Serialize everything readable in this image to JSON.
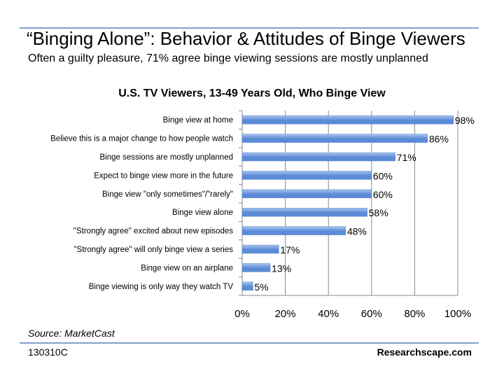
{
  "slide": {
    "title": "“Binging Alone”: Behavior & Attitudes of Binge Viewers",
    "subtitle": "Often a guilty pleasure, 71% agree binge viewing sessions are mostly unplanned",
    "source": "Source: MarketCast",
    "code": "130310C",
    "brand": "Researchscape.com"
  },
  "colors": {
    "bar": "#5b8bd6",
    "bar_light": "#a9c4ee",
    "rule": "#7f9fcf",
    "grid": "#888888"
  },
  "chart_data": {
    "type": "bar",
    "orientation": "horizontal",
    "title": "U.S. TV Viewers, 13-49 Years Old, Who Binge View",
    "categories": [
      "Binge view at home",
      "Believe this is a major change to how people watch",
      "Binge sessions are mostly unplanned",
      "Expect to binge view more in the future",
      "Binge view \"only sometimes\"/\"rarely\"",
      "Binge view alone",
      "\"Strongly agree\" excited about new episodes",
      "\"Strongly agree\" will only binge view a series",
      "Binge view on an airplane",
      "Binge viewing is only way they watch TV"
    ],
    "values": [
      98,
      86,
      71,
      60,
      60,
      58,
      48,
      17,
      13,
      5
    ],
    "value_labels": [
      "98%",
      "86%",
      "71%",
      "60%",
      "60%",
      "58%",
      "48%",
      "17%",
      "13%",
      "5%"
    ],
    "xlim": [
      0,
      100
    ],
    "xticks": [
      0,
      20,
      40,
      60,
      80,
      100
    ],
    "xtick_labels": [
      "0%",
      "20%",
      "40%",
      "60%",
      "80%",
      "100%"
    ],
    "grid": true,
    "legend": "none"
  }
}
